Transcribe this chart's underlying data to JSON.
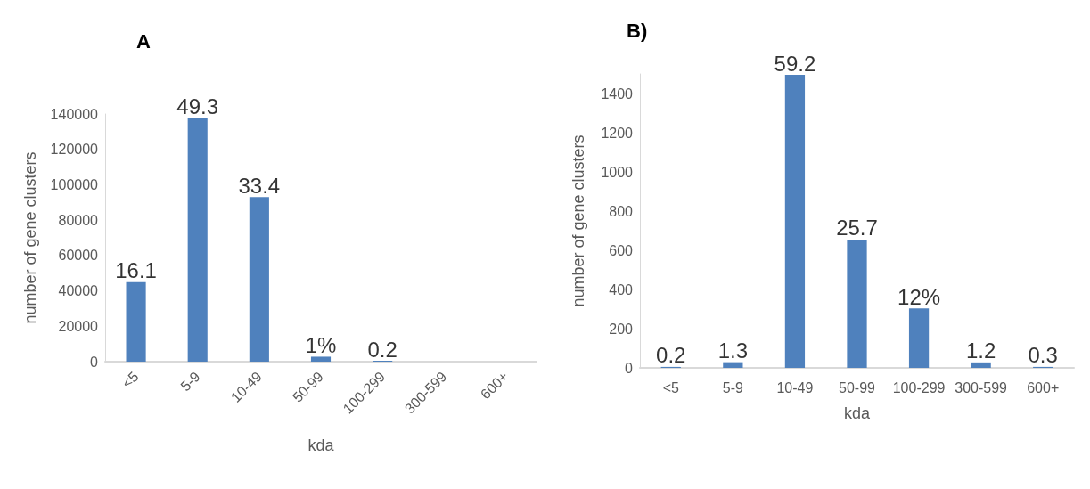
{
  "chart_data": [
    {
      "type": "bar",
      "title": "A",
      "xlabel": "kda",
      "ylabel": "number of gene clusters",
      "categories": [
        "<5",
        "5-9",
        "10-49",
        "50-99",
        "100-299",
        "300-599",
        "600+"
      ],
      "series": [
        {
          "color": "#4f81bd",
          "values": [
            45000,
            137500,
            93000,
            2800,
            500,
            0,
            0
          ]
        }
      ],
      "annotations": [
        {
          "text": "16.1",
          "x": "<5",
          "y": 45000
        },
        {
          "text": "49.3",
          "x": "5-9",
          "y": 137500
        },
        {
          "text": "33.4",
          "x": "10-49",
          "y": 93000
        },
        {
          "text": "1%",
          "x": "50-99",
          "y": 2800
        },
        {
          "text": "0.2",
          "x": "100-299",
          "y": 500
        }
      ],
      "ylim": [
        0,
        140000
      ],
      "yticks": [
        0,
        20000,
        40000,
        60000,
        80000,
        100000,
        120000,
        140000
      ],
      "grid": false
    },
    {
      "type": "bar",
      "title": "B)",
      "xlabel": "kda",
      "ylabel": "number of gene clusters",
      "categories": [
        "<5",
        "5-9",
        "10-49",
        "50-99",
        "100-299",
        "300-599",
        "600+"
      ],
      "series": [
        {
          "color": "#4f81bd",
          "values": [
            5,
            29,
            1495,
            655,
            303,
            28,
            5
          ]
        }
      ],
      "annotations": [
        {
          "text": "0.2",
          "x": "<5",
          "y": 5
        },
        {
          "text": "1.3",
          "x": "5-9",
          "y": 29
        },
        {
          "text": "59.2",
          "x": "10-49",
          "y": 1495
        },
        {
          "text": "25.7",
          "x": "50-99",
          "y": 655
        },
        {
          "text": "12%",
          "x": "100-299",
          "y": 303
        },
        {
          "text": "1.2",
          "x": "300-599",
          "y": 28
        },
        {
          "text": "0.3",
          "x": "600+",
          "y": 5
        }
      ],
      "ylim": [
        0,
        1500
      ],
      "yticks": [
        0,
        200,
        400,
        600,
        800,
        1000,
        1200,
        1400
      ],
      "grid": false
    }
  ]
}
